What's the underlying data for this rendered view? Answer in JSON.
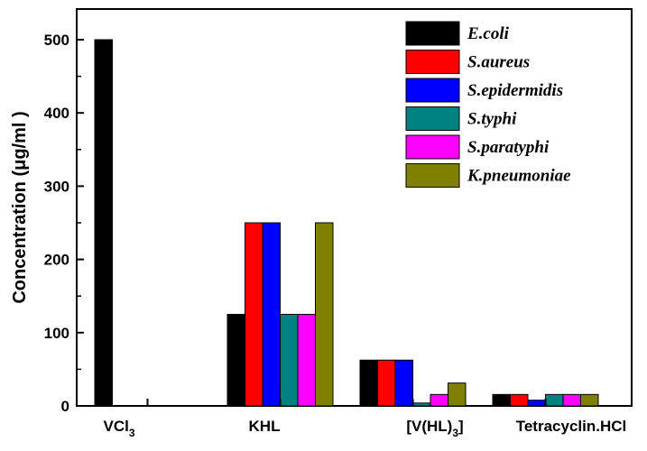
{
  "chart_data": {
    "type": "bar",
    "title": "",
    "xlabel": "",
    "ylabel": "Concentration (μg/ml )",
    "ylim": [
      0,
      500
    ],
    "yticks": [
      0,
      100,
      200,
      300,
      400,
      500
    ],
    "grid": false,
    "legend_position": "top-right",
    "categories": [
      {
        "base": "VCl",
        "sub": "3"
      },
      {
        "base": "KHL",
        "sub": ""
      },
      {
        "base": "[V(HL)",
        "sub": "3",
        "tail": "]"
      },
      {
        "base": "Tetracyclin.HCl",
        "sub": ""
      }
    ],
    "series": [
      {
        "name": "E.coli",
        "color": "#000000",
        "values": [
          500,
          125,
          62.5,
          15.6
        ]
      },
      {
        "name": "S.aureus",
        "color": "#ff0000",
        "values": [
          0,
          250,
          62.5,
          15.6
        ]
      },
      {
        "name": "S.epidermidis",
        "color": "#0000ff",
        "values": [
          0,
          250,
          62.5,
          7.8
        ]
      },
      {
        "name": "S.typhi",
        "color": "#008080",
        "values": [
          0,
          125,
          3.9,
          15.6
        ]
      },
      {
        "name": "S.paratyphi",
        "color": "#ff00ff",
        "values": [
          0,
          125,
          15.6,
          15.6
        ]
      },
      {
        "name": "K.pneumoniae",
        "color": "#808000",
        "values": [
          0,
          250,
          31.2,
          15.6
        ]
      }
    ]
  }
}
